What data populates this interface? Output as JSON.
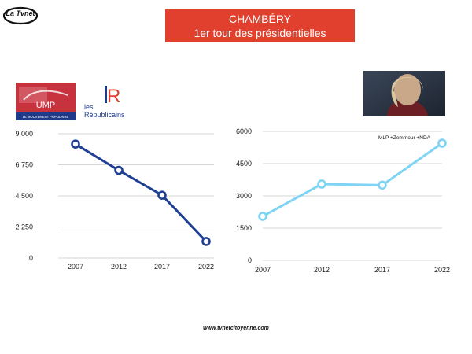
{
  "header": {
    "brand_logo": "La Tvnet",
    "title_line1": "CHAMBÉRY",
    "title_line2": "1er tour des présidentielles",
    "title_bg": "#e0402d"
  },
  "party_logos": {
    "ump_text": "UMP",
    "ump_subtext": "LE MOUVEMENT POPULAIRE",
    "lr_mark": "R",
    "lr_line1": "les",
    "lr_line2": "Républicains"
  },
  "footer": {
    "url": "www.tvnetcitoyenne.com"
  },
  "chart_data": [
    {
      "type": "line",
      "title": "",
      "categories": [
        "2007",
        "2012",
        "2017",
        "2022"
      ],
      "series": [
        {
          "values": [
            8250,
            6350,
            4550,
            1200
          ],
          "color": "#1f3f94"
        }
      ],
      "ylim": [
        0,
        9000
      ],
      "yticks": [
        0,
        2250,
        4500,
        6750,
        9000
      ],
      "ytick_labels": [
        "0",
        "2 250",
        "4 500",
        "6 750",
        "9 000"
      ],
      "grid": true
    },
    {
      "type": "line",
      "title": "",
      "annotation": "MLP +Zemmour +NDA",
      "categories": [
        "2007",
        "2012",
        "2017",
        "2022"
      ],
      "series": [
        {
          "values": [
            2050,
            3550,
            3500,
            5450
          ],
          "color": "#7fd3f3"
        }
      ],
      "ylim": [
        0,
        6000
      ],
      "yticks": [
        0,
        1500,
        3000,
        4500,
        6000
      ],
      "ytick_labels": [
        "0",
        "1500",
        "3000",
        "4500",
        "6000"
      ],
      "grid": true
    }
  ]
}
